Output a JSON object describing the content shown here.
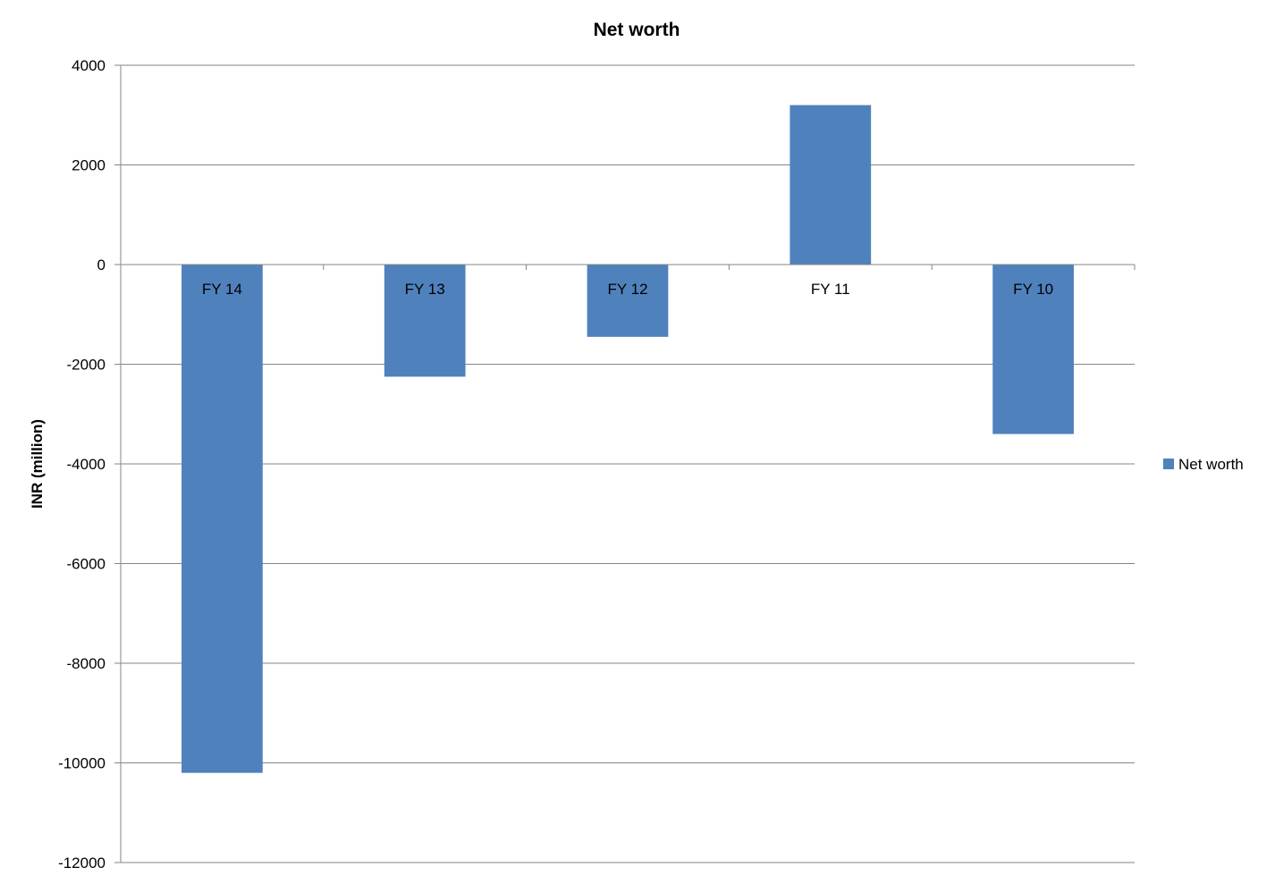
{
  "chart_data": {
    "type": "bar",
    "title": "Net worth",
    "xlabel": "",
    "ylabel": "INR (million)",
    "categories": [
      "FY 14",
      "FY 13",
      "FY 12",
      "FY 11",
      "FY 10"
    ],
    "series": [
      {
        "name": "Net worth",
        "values": [
          -10200,
          -2250,
          -1450,
          3200,
          -3400
        ]
      }
    ],
    "ylim": [
      -12000,
      4000
    ],
    "yticks": [
      4000,
      2000,
      0,
      -2000,
      -4000,
      -6000,
      -8000,
      -10000,
      -12000
    ],
    "ytick_labels": [
      "4000",
      "2000",
      "0",
      "-2000",
      "-4000",
      "-6000",
      "-8000",
      "-10000",
      "-12000"
    ],
    "grid": true,
    "legend": "right",
    "colors": {
      "bar": "#4F81BD",
      "gridline": "#868686"
    }
  }
}
